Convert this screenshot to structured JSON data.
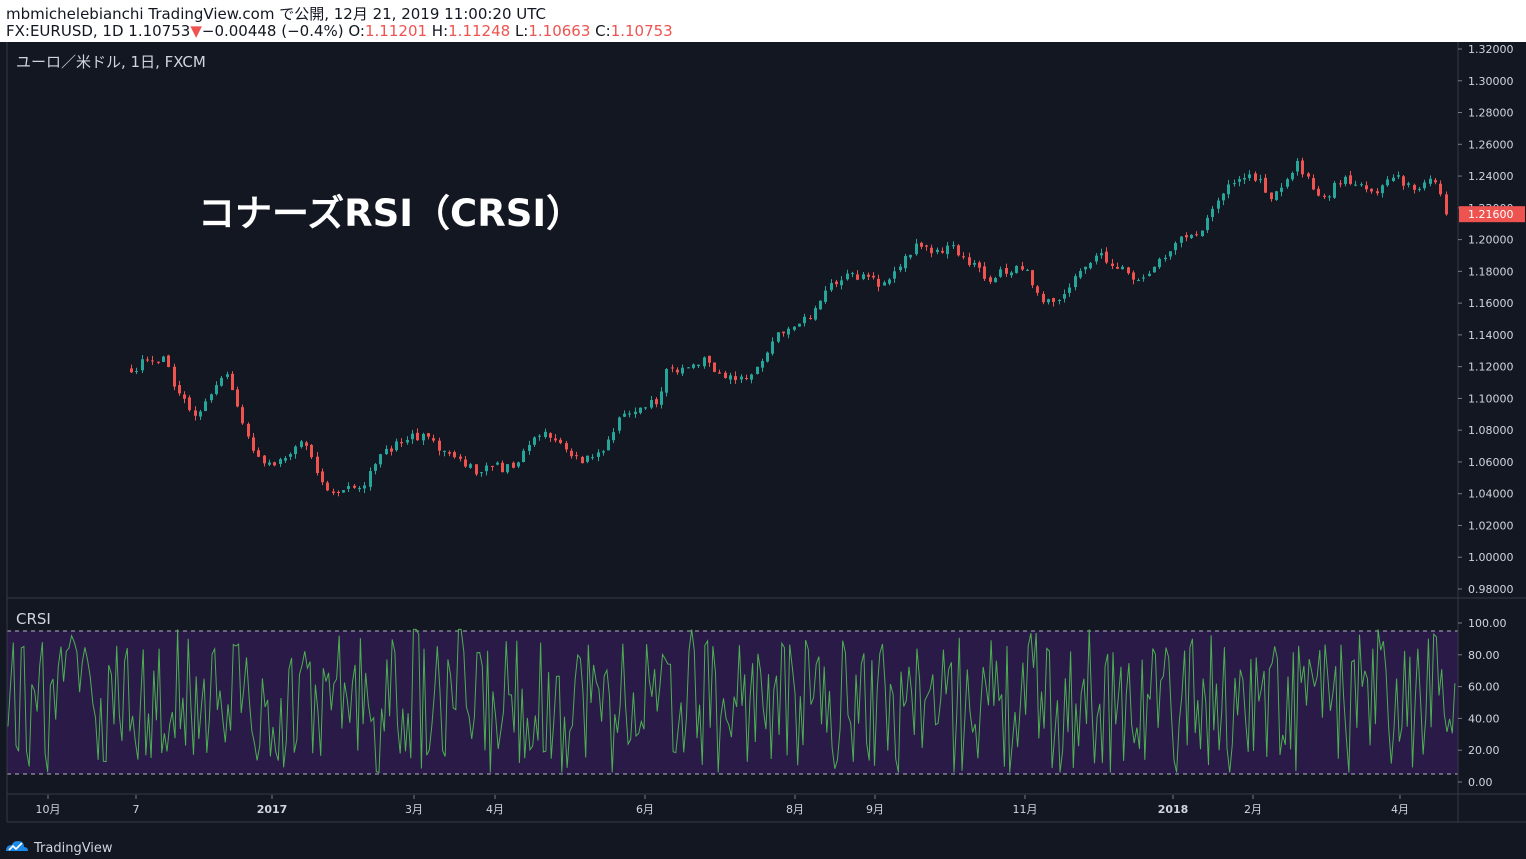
{
  "header": {
    "line1": "mbmichelebianchi TradingView.com で公開, 12月 21, 2019 11:00:20 UTC",
    "symbol_prefix": "FX:EURUSD, 1D 1.10753",
    "arrow": "▼",
    "change": "−0.00448 (−0.4%)",
    "o_label": " O:",
    "o_value": "1.11201",
    "h_label": " H:",
    "h_value": "1.11248",
    "l_label": " L:",
    "l_value": "1.10663",
    "c_label": " C:",
    "c_value": "1.10753"
  },
  "main_pane": {
    "symbol_label": "ユーロ／米ドル, 1日, FXCM",
    "annotation": "コナーズRSI（CRSI）",
    "price_ticks": [
      "1.32000",
      "1.30000",
      "1.28000",
      "1.26000",
      "1.24000",
      "1.22000",
      "1.20000",
      "1.18000",
      "1.16000",
      "1.14000",
      "1.12000",
      "1.10000",
      "1.08000",
      "1.06000",
      "1.04000",
      "1.02000",
      "1.00000",
      "0.98000"
    ],
    "last_price_label": "1.21600"
  },
  "indicator_pane": {
    "label": "CRSI",
    "ticks": [
      "100.00",
      "80.00",
      "60.00",
      "40.00",
      "20.00",
      "0.00"
    ]
  },
  "time_axis": {
    "labels": [
      {
        "text": "10月",
        "bold": false
      },
      {
        "text": "7",
        "bold": false
      },
      {
        "text": "2017",
        "bold": true
      },
      {
        "text": "3月",
        "bold": false
      },
      {
        "text": "4月",
        "bold": false
      },
      {
        "text": "6月",
        "bold": false
      },
      {
        "text": "8月",
        "bold": false
      },
      {
        "text": "9月",
        "bold": false
      },
      {
        "text": "11月",
        "bold": false
      },
      {
        "text": "2018",
        "bold": true
      },
      {
        "text": "2月",
        "bold": false
      },
      {
        "text": "4月",
        "bold": false
      }
    ]
  },
  "watermark": {
    "text": "TradingView"
  },
  "colors": {
    "background": "#131722",
    "up": "#26a69a",
    "down": "#ef5350",
    "crsi_line": "#4caf50",
    "crsi_band": "#2a1a48",
    "text": "#d1d4dc",
    "grid_border": "#363a45"
  },
  "chart_data": [
    {
      "type": "candlestick",
      "title": "ユーロ／米ドル, 1日, FXCM",
      "ylim": [
        0.97,
        1.33
      ],
      "anchors": {
        "x": [
          "2016-09-24",
          "2016-10-01",
          "2016-10-08",
          "2016-10-13",
          "2016-10-20",
          "2016-10-25",
          "2016-11-01",
          "2016-11-04",
          "2016-11-10",
          "2016-11-18",
          "2016-11-25",
          "2016-12-03",
          "2016-12-08",
          "2016-12-13",
          "2016-12-20",
          "2017-01-03",
          "2017-01-10",
          "2017-01-16",
          "2017-01-25",
          "2017-02-02",
          "2017-02-10",
          "2017-02-21",
          "2017-03-01",
          "2017-03-06",
          "2017-03-14",
          "2017-03-21",
          "2017-03-30",
          "2017-04-07",
          "2017-04-13",
          "2017-04-20",
          "2017-04-26",
          "2017-05-06",
          "2017-05-12",
          "2017-05-16",
          "2017-05-25",
          "2017-06-02",
          "2017-06-08",
          "2017-06-16",
          "2017-06-23",
          "2017-07-03",
          "2017-07-07",
          "2017-07-18",
          "2017-07-24",
          "2017-08-02",
          "2017-08-10",
          "2017-08-18",
          "2017-08-27",
          "2017-09-03",
          "2017-09-08",
          "2017-09-16",
          "2017-09-24",
          "2017-10-04",
          "2017-10-13",
          "2017-10-20",
          "2017-10-26",
          "2017-11-03",
          "2017-11-13",
          "2017-11-20",
          "2017-11-27",
          "2017-12-06",
          "2017-12-13",
          "2017-12-20",
          "2017-12-25",
          "2018-01-03",
          "2018-01-08",
          "2018-01-14",
          "2018-01-24",
          "2018-01-29",
          "2018-02-03",
          "2018-02-08",
          "2018-02-15",
          "2018-02-21",
          "2018-02-28",
          "2018-03-07",
          "2018-03-14",
          "2018-03-20",
          "2018-03-27",
          "2018-04-04",
          "2018-04-09",
          "2018-04-16",
          "2018-04-21"
        ],
        "close": [
          1.118,
          1.124,
          1.124,
          1.108,
          1.09,
          1.095,
          1.108,
          1.115,
          1.092,
          1.062,
          1.057,
          1.065,
          1.075,
          1.055,
          1.04,
          1.045,
          1.062,
          1.07,
          1.078,
          1.072,
          1.064,
          1.055,
          1.058,
          1.054,
          1.065,
          1.078,
          1.072,
          1.063,
          1.06,
          1.072,
          1.09,
          1.095,
          1.1,
          1.118,
          1.12,
          1.125,
          1.115,
          1.112,
          1.118,
          1.14,
          1.142,
          1.152,
          1.168,
          1.18,
          1.175,
          1.172,
          1.188,
          1.197,
          1.19,
          1.196,
          1.185,
          1.175,
          1.182,
          1.18,
          1.16,
          1.165,
          1.18,
          1.19,
          1.183,
          1.175,
          1.182,
          1.192,
          1.2,
          1.202,
          1.218,
          1.232,
          1.242,
          1.238,
          1.225,
          1.235,
          1.25,
          1.232,
          1.228,
          1.24,
          1.235,
          1.23,
          1.24,
          1.235,
          1.232,
          1.238,
          1.216
        ]
      }
    },
    {
      "type": "line",
      "title": "CRSI",
      "ylim": [
        -5,
        105
      ],
      "bands": [
        5,
        95
      ]
    }
  ]
}
